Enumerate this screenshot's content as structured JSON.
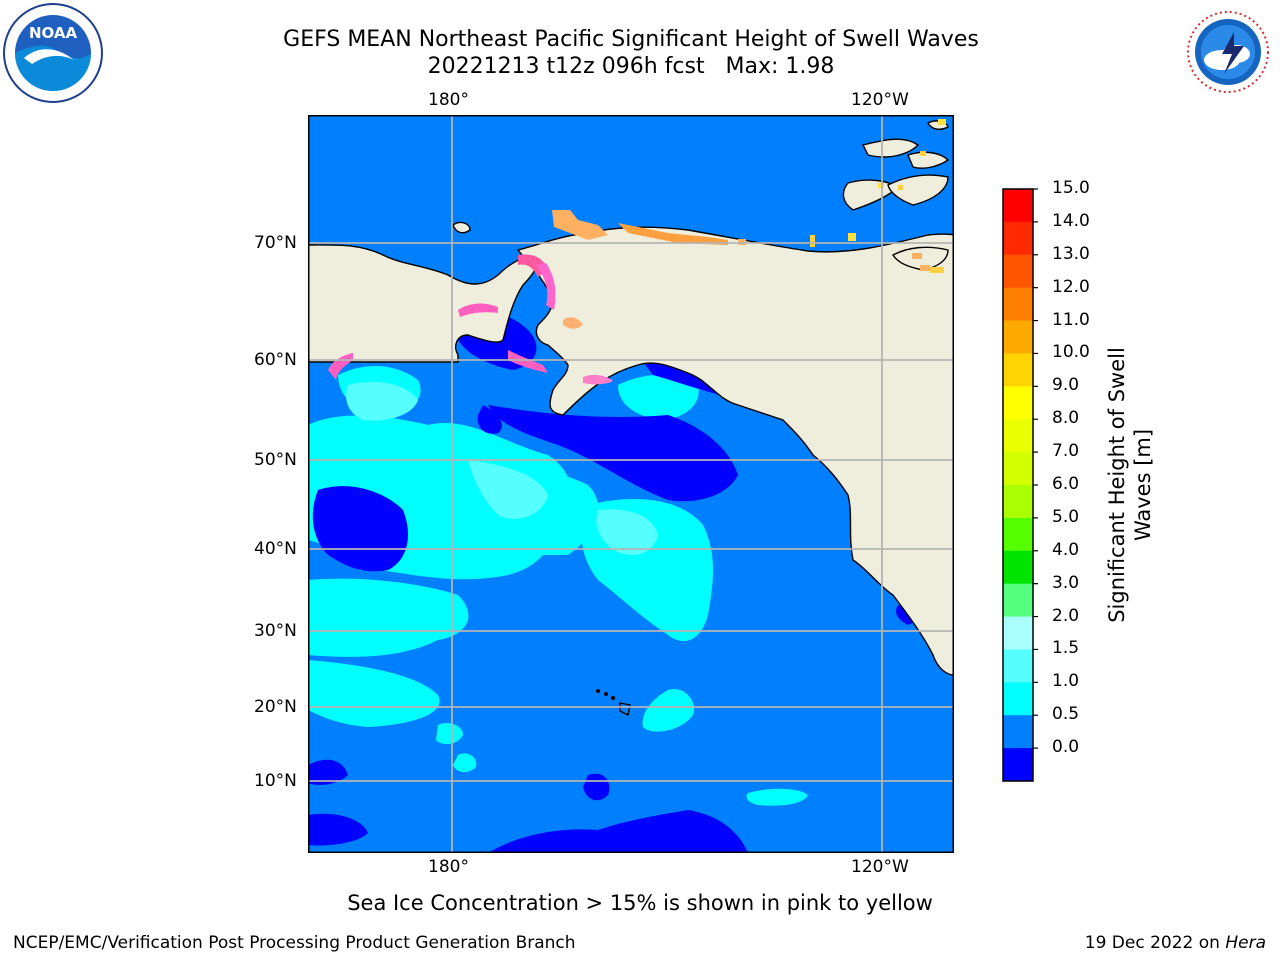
{
  "header": {
    "title_line1": "GEFS MEAN Northeast Pacific Significant Height of Swell Waves",
    "title_line2": "20221213 t12z 096h fcst   Max: 1.98"
  },
  "logos": {
    "left": {
      "icon": "noaa-logo-icon",
      "text": "NOAA"
    },
    "right": {
      "icon": "national-weather-service-logo-icon",
      "text": "NATIONAL WEATHER SERVICE"
    }
  },
  "map": {
    "top_ticks": [
      "180°",
      "120°W"
    ],
    "bottom_ticks": [
      "180°",
      "120°W"
    ],
    "lat_ticks": [
      "70°N",
      "60°N",
      "50°N",
      "40°N",
      "30°N",
      "20°N",
      "10°N"
    ]
  },
  "colorbar": {
    "title": "Significant Height of Swell\nWaves [m]",
    "labels": [
      "15.0",
      "14.0",
      "13.0",
      "12.0",
      "11.0",
      "10.0",
      "9.0",
      "8.0",
      "7.0",
      "6.0",
      "5.0",
      "4.0",
      "3.0",
      "2.0",
      "1.5",
      "1.0",
      "0.5",
      "0.0"
    ],
    "colors": [
      "#ff0000",
      "#ff2a00",
      "#ff5500",
      "#ff8000",
      "#ffaa00",
      "#ffd400",
      "#ffff00",
      "#eaff00",
      "#d4ff00",
      "#aaff00",
      "#55ff00",
      "#00e400",
      "#55ff7f",
      "#aaffff",
      "#55ffff",
      "#00ffff",
      "#0080ff",
      "#0000ff"
    ]
  },
  "caption": "Sea Ice Concentration > 15% is shown in pink to yellow",
  "footer": {
    "left": "NCEP/EMC/Verification Post Processing Product Generation Branch",
    "right_date": "19 Dec 2022 on ",
    "right_host": "Hera"
  }
}
